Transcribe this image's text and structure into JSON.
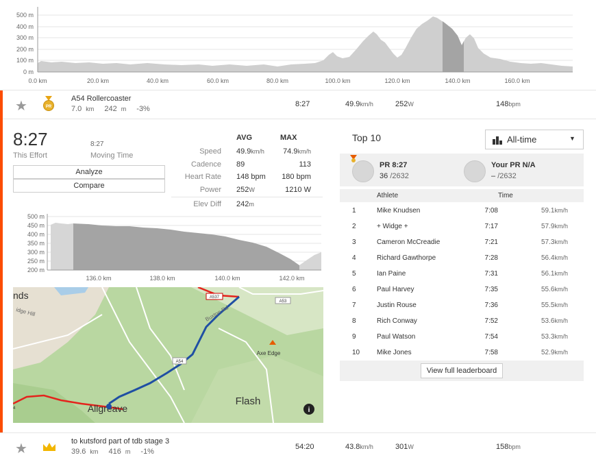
{
  "top_profile": {
    "y_ticks": [
      "500 m",
      "400 m",
      "300 m",
      "200 m",
      "100 m",
      "0 m"
    ],
    "x_ticks": [
      "0.0 km",
      "20.0 km",
      "40.0 km",
      "60.0 km",
      "80.0 km",
      "100.0 km",
      "120.0 km",
      "140.0 km",
      "160.0 km"
    ]
  },
  "segment1": {
    "name": "A54 Rollercoaster",
    "distance": "7.0",
    "distance_unit": "km",
    "elev": "242",
    "elev_unit": "m",
    "grade": "-3%",
    "time": "8:27",
    "speed": "49.9",
    "speed_unit": "km/h",
    "power": "252",
    "power_unit": "W",
    "hr": "148",
    "hr_unit": "bpm",
    "medal_label": "PR"
  },
  "effort": {
    "time": "8:27",
    "this_effort_label": "This Effort",
    "moving_time": "8:27",
    "moving_time_label": "Moving Time",
    "analyze_label": "Analyze",
    "compare_label": "Compare"
  },
  "stats": {
    "avg_header": "AVG",
    "max_header": "MAX",
    "rows": [
      {
        "label": "Speed",
        "avg": "49.9",
        "avg_unit": "km/h",
        "max": "74.9",
        "max_unit": "km/h"
      },
      {
        "label": "Cadence",
        "avg": "89",
        "avg_unit": "",
        "max": "113",
        "max_unit": ""
      },
      {
        "label": "Heart Rate",
        "avg": "148 bpm",
        "avg_unit": "",
        "max": "180 bpm",
        "max_unit": ""
      },
      {
        "label": "Power",
        "avg": "252",
        "avg_unit": "W",
        "max": "1210 W",
        "max_unit": ""
      },
      {
        "label": "Elev Diff",
        "avg": "242",
        "avg_unit": "m",
        "max": "",
        "max_unit": ""
      }
    ]
  },
  "segment_profile": {
    "y_ticks": [
      "500 m",
      "450 m",
      "400 m",
      "350 m",
      "300 m",
      "250 m",
      "200 m"
    ],
    "x_ticks": [
      "136.0 km",
      "138.0 km",
      "140.0 km",
      "142.0 km"
    ]
  },
  "map": {
    "labels": {
      "nds": "nds",
      "ridge": "idge Hill",
      "axe_edge": "Axe Edge",
      "flash": "Flash",
      "allgreave": "Allgreave",
      "buxton": "Buxton Rd",
      "a537": "A537",
      "a53": "A53",
      "a54": "A54",
      "four": "4"
    },
    "colors": {
      "route": "#1f4fa3",
      "road": "#e4231c"
    }
  },
  "leaderboard": {
    "title": "Top 10",
    "filter": "All-time",
    "pr": {
      "label": "PR 8:27",
      "rank": "36",
      "total": "/2632"
    },
    "your_pr": {
      "label": "Your PR N/A",
      "rank": "–",
      "total": "/2632"
    },
    "col_athlete": "Athlete",
    "col_time": "Time",
    "rows": [
      {
        "rank": "1",
        "athlete": "Mike Knudsen",
        "time": "7:08",
        "speed": "59.1",
        "unit": "km/h"
      },
      {
        "rank": "2",
        "athlete": "+ Widge +",
        "time": "7:17",
        "speed": "57.9",
        "unit": "km/h"
      },
      {
        "rank": "3",
        "athlete": "Cameron McCreadie",
        "time": "7:21",
        "speed": "57.3",
        "unit": "km/h"
      },
      {
        "rank": "4",
        "athlete": "Richard Gawthorpe",
        "time": "7:28",
        "speed": "56.4",
        "unit": "km/h"
      },
      {
        "rank": "5",
        "athlete": "Ian Paine",
        "time": "7:31",
        "speed": "56.1",
        "unit": "km/h"
      },
      {
        "rank": "6",
        "athlete": "Paul Harvey",
        "time": "7:35",
        "speed": "55.6",
        "unit": "km/h"
      },
      {
        "rank": "7",
        "athlete": "Justin Rouse",
        "time": "7:36",
        "speed": "55.5",
        "unit": "km/h"
      },
      {
        "rank": "8",
        "athlete": "Rich Conway",
        "time": "7:52",
        "speed": "53.6",
        "unit": "km/h"
      },
      {
        "rank": "9",
        "athlete": "Paul Watson",
        "time": "7:54",
        "speed": "53.3",
        "unit": "km/h"
      },
      {
        "rank": "10",
        "athlete": "Mike Jones",
        "time": "7:58",
        "speed": "52.9",
        "unit": "km/h"
      }
    ],
    "view_full": "View full leaderboard"
  },
  "segment2": {
    "name": "to kutsford part of tdb stage 3",
    "distance": "39.6",
    "distance_unit": "km",
    "elev": "416",
    "elev_unit": "m",
    "grade": "-1%",
    "time": "54:20",
    "speed": "43.8",
    "speed_unit": "km/h",
    "power": "301",
    "power_unit": "W",
    "hr": "158",
    "hr_unit": "bpm"
  }
}
